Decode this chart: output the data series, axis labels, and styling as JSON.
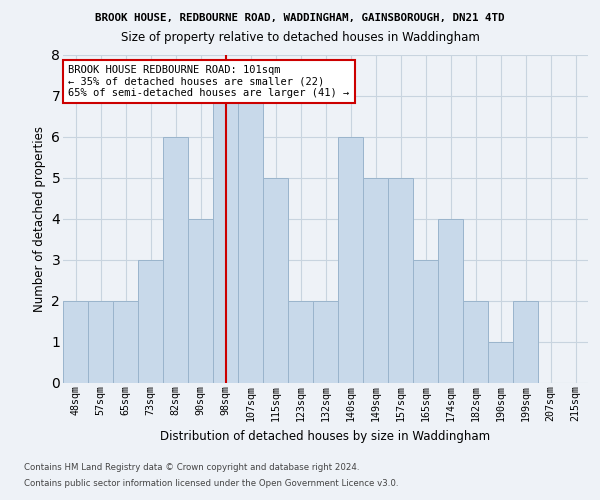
{
  "title_line1": "BROOK HOUSE, REDBOURNE ROAD, WADDINGHAM, GAINSBOROUGH, DN21 4TD",
  "title_line2": "Size of property relative to detached houses in Waddingham",
  "xlabel": "Distribution of detached houses by size in Waddingham",
  "ylabel": "Number of detached properties",
  "categories": [
    "48sqm",
    "57sqm",
    "65sqm",
    "73sqm",
    "82sqm",
    "90sqm",
    "98sqm",
    "107sqm",
    "115sqm",
    "123sqm",
    "132sqm",
    "140sqm",
    "149sqm",
    "157sqm",
    "165sqm",
    "174sqm",
    "182sqm",
    "190sqm",
    "199sqm",
    "207sqm",
    "215sqm"
  ],
  "values": [
    2,
    2,
    2,
    3,
    6,
    4,
    7,
    7,
    5,
    2,
    2,
    6,
    5,
    5,
    3,
    4,
    2,
    1,
    2,
    0,
    0
  ],
  "bar_color": "#c8d9ea",
  "bar_edge_color": "#9ab4cc",
  "highlight_bar_index": 6,
  "highlight_color": "#cc0000",
  "ylim": [
    0,
    8
  ],
  "yticks": [
    0,
    1,
    2,
    3,
    4,
    5,
    6,
    7,
    8
  ],
  "annotation_title": "BROOK HOUSE REDBOURNE ROAD: 101sqm",
  "annotation_line2": "← 35% of detached houses are smaller (22)",
  "annotation_line3": "65% of semi-detached houses are larger (41) →",
  "footer_line1": "Contains HM Land Registry data © Crown copyright and database right 2024.",
  "footer_line2": "Contains public sector information licensed under the Open Government Licence v3.0.",
  "background_color": "#eef2f7",
  "plot_bg_color": "#eef2f7",
  "grid_color": "#c8d4df"
}
